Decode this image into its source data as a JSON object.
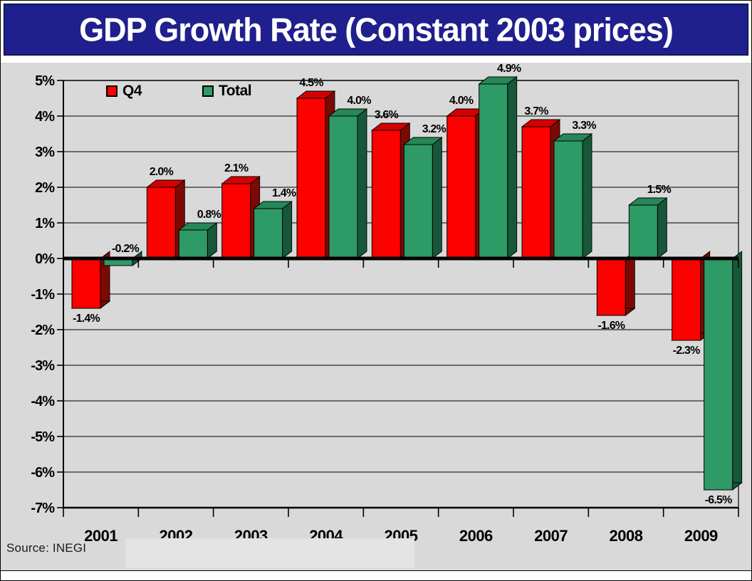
{
  "title": "GDP Growth Rate (Constant 2003 prices)",
  "source_text": "Source: INEGI",
  "legend": {
    "q4": {
      "label": "Q4",
      "color": "#fb0100"
    },
    "total": {
      "label": "Total",
      "color": "#2e9a66"
    }
  },
  "colors": {
    "title_bar_bg": "#1f1f8e",
    "title_text": "#ffffff",
    "panel_bg": "#d9d9d9",
    "grid_line": "#000000",
    "q4_front": "#fb0100",
    "q4_side": "#7c0a02",
    "q4_top": "#d40000",
    "total_front": "#2e9a66",
    "total_side": "#17573a",
    "total_top": "#268757"
  },
  "chart_data": {
    "type": "bar",
    "title": "GDP Growth Rate (Constant 2003 prices)",
    "xlabel": "",
    "ylabel": "",
    "ylim": [
      -7,
      5
    ],
    "ytick_step": 1,
    "ytick_labels": [
      "5%",
      "4%",
      "3%",
      "2%",
      "1%",
      "0%",
      "-1%",
      "-2%",
      "-3%",
      "-4%",
      "-5%",
      "-6%",
      "-7%"
    ],
    "grid": true,
    "legend_position": "top-left-inside",
    "categories": [
      "2001",
      "2002",
      "2003",
      "2004",
      "2005",
      "2006",
      "2007",
      "2008",
      "2009"
    ],
    "series": [
      {
        "name": "Q4",
        "color": "#fb0100",
        "side_color": "#7c0a02",
        "top_color": "#d40000",
        "values": [
          -1.4,
          2.0,
          2.1,
          4.5,
          3.6,
          4.0,
          3.7,
          -1.6,
          -2.3
        ],
        "labels": [
          "-1.4%",
          "2.0%",
          "2.1%",
          "4.5%",
          "3.6%",
          "4.0%",
          "3.7%",
          "-1.6%",
          "-2.3%"
        ]
      },
      {
        "name": "Total",
        "color": "#2e9a66",
        "side_color": "#17573a",
        "top_color": "#268757",
        "values": [
          -0.2,
          0.8,
          1.4,
          4.0,
          3.2,
          4.9,
          3.3,
          1.5,
          -6.5
        ],
        "labels": [
          "-0.2%",
          "0.8%",
          "1.4%",
          "4.0%",
          "3.2%",
          "4.9%",
          "3.3%",
          "1.5%",
          "-6.5%"
        ]
      }
    ]
  }
}
